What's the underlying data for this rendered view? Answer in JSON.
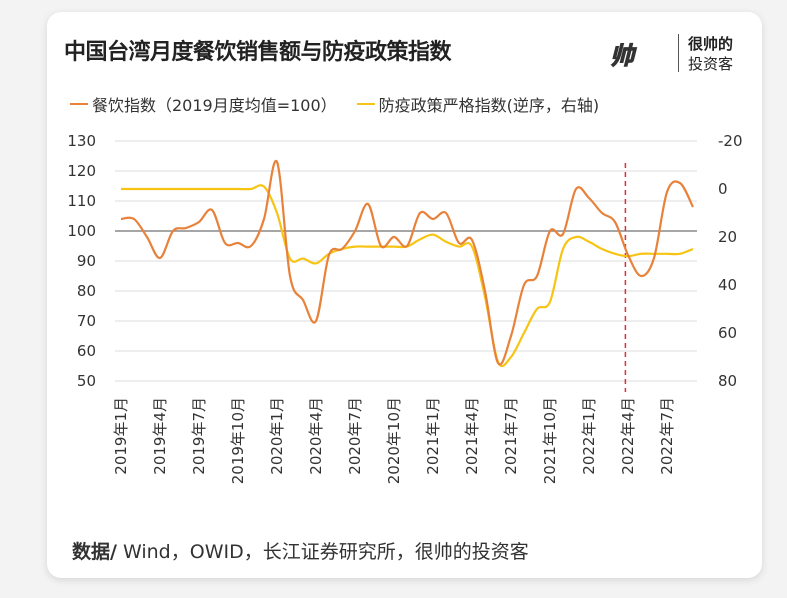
{
  "title": "中国台湾月度餐饮销售额与防疫政策指数",
  "logo": {
    "mark": "帅",
    "line1": "很帅的",
    "line2": "投资客"
  },
  "source": {
    "label": "数据/",
    "text": " Wind，OWID，长江证券研究所，很帅的投资客"
  },
  "colors": {
    "restaurant": "#e8823a",
    "policy": "#f7c414",
    "reference": "#888888",
    "marker": "#d9303a",
    "grid": "#e8e8e8"
  },
  "chart_data": {
    "type": "line",
    "title": "中国台湾月度餐饮销售额与防疫政策指数",
    "x_tick_labels": [
      "2019年1月",
      "2019年4月",
      "2019年7月",
      "2019年10月",
      "2020年1月",
      "2020年4月",
      "2020年7月",
      "2020年10月",
      "2021年1月",
      "2021年4月",
      "2021年7月",
      "2021年10月",
      "2022年1月",
      "2022年4月",
      "2022年7月"
    ],
    "x_start": "2019-01",
    "x_count": 45,
    "left_axis": {
      "ylim": [
        50,
        130
      ],
      "ticks": [
        "130",
        "120",
        "110",
        "100",
        "90",
        "80",
        "70",
        "60",
        "50"
      ]
    },
    "right_axis": {
      "ylim": [
        -20,
        80
      ],
      "inverted": true,
      "ticks": [
        "-20",
        "0",
        "20",
        "40",
        "60",
        "80"
      ]
    },
    "reference_line": 100,
    "marker_month_index": 38.8,
    "series": [
      {
        "name": "餐饮指数（2019月度均值=100）",
        "axis": "left",
        "values": [
          104,
          104,
          98,
          91,
          100,
          101,
          103,
          107,
          96,
          96,
          95,
          104,
          123,
          85,
          77,
          70,
          92,
          94,
          100,
          109,
          95,
          98,
          95,
          106,
          104,
          106,
          96,
          97,
          80,
          56,
          65,
          82,
          85,
          100,
          99,
          114,
          111,
          106,
          103,
          92,
          85,
          91,
          113,
          116,
          108
        ]
      },
      {
        "name": "防疫政策严格指数(逆序，右轴)",
        "axis": "right",
        "values": [
          0,
          0,
          0,
          0,
          0,
          0,
          0,
          0,
          0,
          0,
          0,
          -1,
          10,
          29,
          29,
          31,
          27,
          25,
          24,
          24,
          24,
          24,
          24,
          21,
          19,
          22,
          24,
          24,
          45,
          72,
          70,
          60,
          50,
          47,
          25,
          20,
          22,
          25,
          27,
          28,
          27,
          27,
          27,
          27,
          25
        ]
      }
    ]
  }
}
